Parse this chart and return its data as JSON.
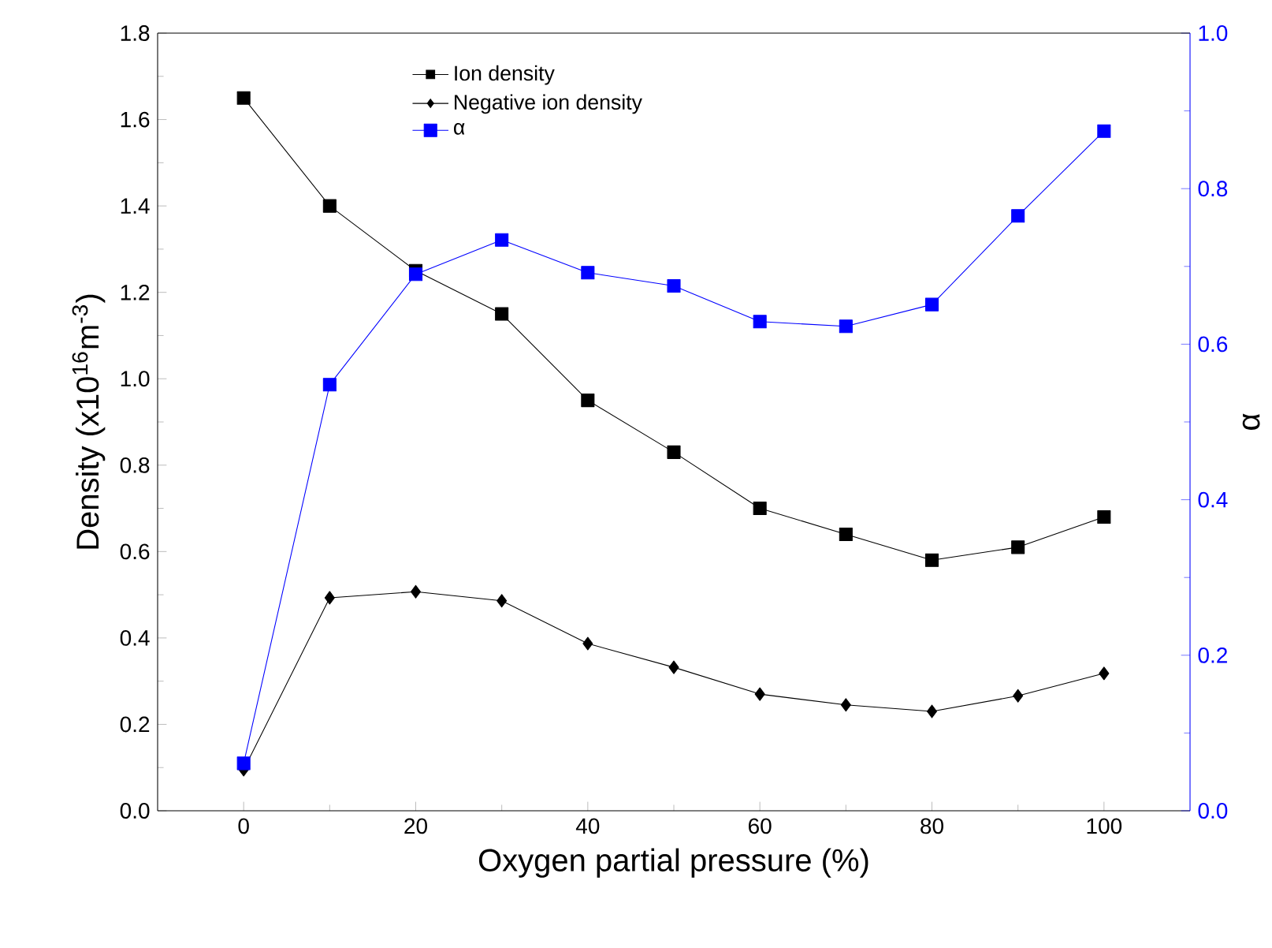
{
  "chart_data": {
    "type": "line",
    "xlabel": "Oxygen partial pressure (%)",
    "ylabel": "Density (x10$^{16}$m$^{-3}$)",
    "y2label": "α",
    "x": [
      0,
      10,
      20,
      30,
      40,
      50,
      60,
      70,
      80,
      90,
      100
    ],
    "series": [
      {
        "name": "Ion density",
        "color": "#000000",
        "marker": "square",
        "values": [
          1.65,
          1.4,
          1.25,
          1.15,
          0.95,
          0.83,
          0.7,
          0.64,
          0.58,
          0.61,
          0.68
        ]
      },
      {
        "name": "Negative ion density",
        "color": "#000000",
        "marker": "diamond",
        "values": [
          0.095,
          0.493,
          0.507,
          0.486,
          0.387,
          0.332,
          0.27,
          0.245,
          0.23,
          0.266,
          0.318
        ]
      },
      {
        "name": "α",
        "color": "#0000ff",
        "marker": "square",
        "axis": "y2",
        "values": [
          0.061,
          0.548,
          0.69,
          0.734,
          0.692,
          0.675,
          0.629,
          0.623,
          0.651,
          0.765,
          0.874
        ]
      }
    ],
    "xlim": [
      -10,
      110
    ],
    "xticks": [
      0,
      20,
      40,
      60,
      80,
      100
    ],
    "ylim": [
      0,
      1.8
    ],
    "yticks": [
      {
        "value": 0,
        "label": "0.0"
      },
      0.2,
      0.4,
      0.6,
      0.8,
      {
        "value": 1,
        "label": "1.0"
      },
      1.2,
      1.4,
      1.6,
      1.8
    ],
    "y2lim": [
      0,
      1.0
    ],
    "y2ticks": [
      {
        "value": 0,
        "label": "0.0"
      },
      0.2,
      0.4,
      0.6,
      0.8,
      {
        "value": 1,
        "label": "1.0"
      }
    ],
    "legend": "top",
    "grid": false,
    "line_style": "solid"
  }
}
